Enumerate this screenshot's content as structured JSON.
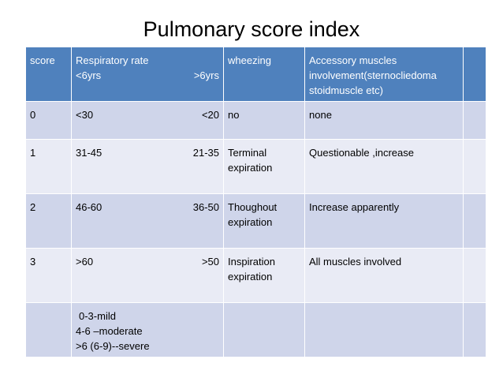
{
  "title": "Pulmonary score index",
  "header": {
    "score": "score",
    "resp": "Respiratory rate",
    "age_lt6": "<6yrs",
    "age_gt6": ">6yrs",
    "wheezing": "wheezing",
    "access1": "Accessory muscles",
    "access2": "involvement(sternocliedoma",
    "access3": "stoidmuscle etc)",
    "extra": ""
  },
  "rows": [
    {
      "score": "0",
      "rr_lt6": "<30",
      "rr_gt6": "<20",
      "wheeze1": "no",
      "wheeze2": "",
      "access": "none"
    },
    {
      "score": "1",
      "rr_lt6": "31-45",
      "rr_gt6": "21-35",
      "wheeze1": "Terminal",
      "wheeze2": "expiration",
      "access": "Questionable ,increase"
    },
    {
      "score": "2",
      "rr_lt6": "46-60",
      "rr_gt6": "36-50",
      "wheeze1": "Thoughout",
      "wheeze2": "expiration",
      "access": "Increase apparently"
    },
    {
      "score": "3",
      "rr_lt6": ">60",
      "rr_gt6": ">50",
      "wheeze1": "Inspiration",
      "wheeze2": "expiration",
      "access": "All muscles involved"
    }
  ],
  "summary": {
    "line1": "0-3-mild",
    "line2": "4-6 –moderate",
    "line3": ">6 (6-9)--severe"
  },
  "colors": {
    "header_bg": "#4f81bd",
    "row_odd": "#cfd5ea",
    "row_even": "#e9ebf5"
  }
}
